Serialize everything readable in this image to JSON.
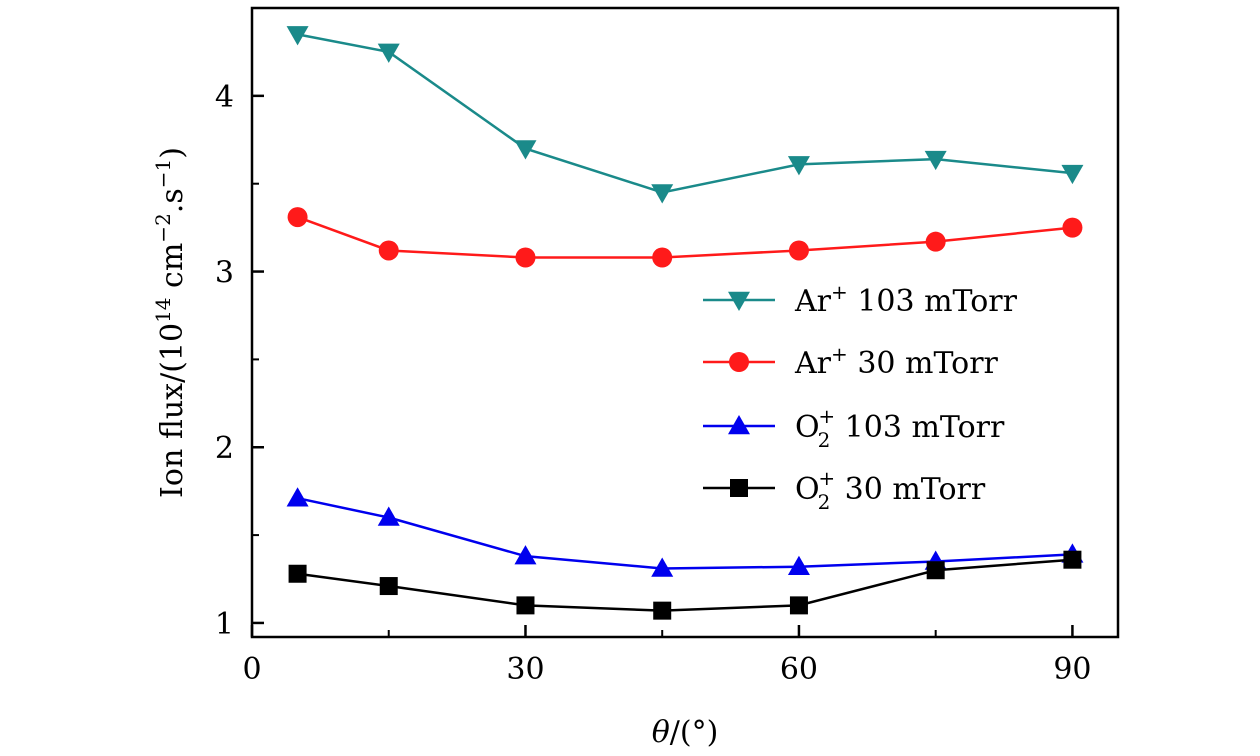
{
  "chart_data": {
    "type": "line",
    "title": "",
    "xlabel_var": "θ",
    "xlabel_rest": "/(",
    "xlabel_unit_symbol": "°",
    "xlabel_close": ")",
    "ylabel_text": "Ion flux/(10",
    "ylabel_exp": "14",
    "ylabel_mid": " cm",
    "ylabel_exp2": "−2",
    "ylabel_mid2": ".s",
    "ylabel_exp3": "−1",
    "ylabel_close": ")",
    "xlim": [
      0,
      95
    ],
    "ylim": [
      0.92,
      4.5
    ],
    "xticks": [
      "0",
      "30",
      "60",
      "90"
    ],
    "xtick_values": [
      0,
      30,
      60,
      90
    ],
    "xminor_values": [
      15,
      45,
      75
    ],
    "yticks": [
      "1",
      "2",
      "3",
      "4"
    ],
    "ytick_values": [
      1,
      2,
      3,
      4
    ],
    "yminor_values": [
      1.5,
      2.5,
      3.5
    ],
    "legend_position": "center-right",
    "x": [
      5,
      15,
      30,
      45,
      60,
      75,
      90
    ],
    "series": [
      {
        "name": "Ar+ 103 mTorr",
        "label_main": "Ar",
        "label_sup": "+",
        "label_sub": "",
        "label_rest": " 103 mTorr",
        "color": "#1a8a8a",
        "marker": "triangle-down",
        "values": [
          4.35,
          4.25,
          3.7,
          3.45,
          3.61,
          3.64,
          3.56
        ]
      },
      {
        "name": "Ar+ 30 mTorr",
        "label_main": "Ar",
        "label_sup": "+",
        "label_sub": "",
        "label_rest": " 30 mTorr",
        "color": "#ff1a1a",
        "marker": "circle",
        "values": [
          3.31,
          3.12,
          3.08,
          3.08,
          3.12,
          3.17,
          3.25
        ]
      },
      {
        "name": "O2+ 103 mTorr",
        "label_main": "O",
        "label_sup": "+",
        "label_sub": "2",
        "label_rest": " 103 mTorr",
        "color": "#0000ee",
        "marker": "triangle-up",
        "values": [
          1.71,
          1.6,
          1.38,
          1.31,
          1.32,
          1.35,
          1.39
        ]
      },
      {
        "name": "O2+ 30 mTorr",
        "label_main": "O",
        "label_sup": "+",
        "label_sub": "2",
        "label_rest": " 30 mTorr",
        "color": "#000000",
        "marker": "square",
        "values": [
          1.28,
          1.21,
          1.1,
          1.07,
          1.1,
          1.3,
          1.36
        ]
      }
    ]
  }
}
